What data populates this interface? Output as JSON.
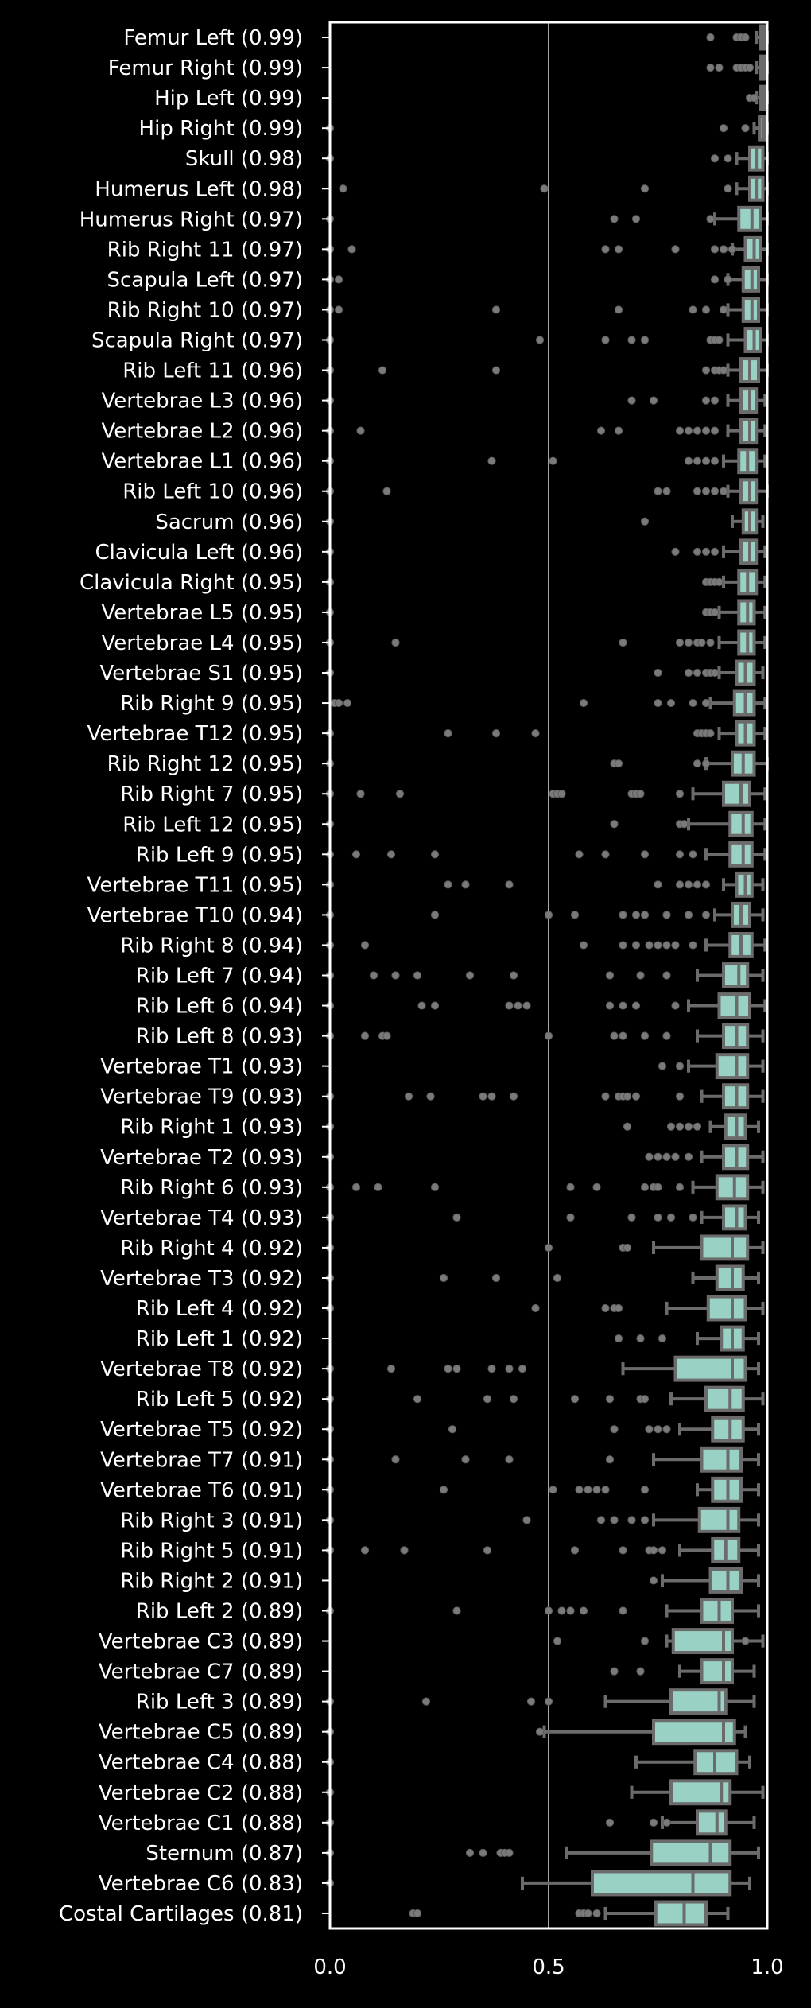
{
  "chart_data": {
    "type": "box",
    "orientation": "horizontal",
    "title": "",
    "xlabel": "",
    "ylabel": "",
    "xlim": [
      0.0,
      1.0
    ],
    "x_ticks": [
      "0.0",
      "0.5",
      "1.0"
    ],
    "grid": "vertical lines at ticks",
    "box_color": "#99d1c4",
    "edge_color": "#6b6b6b",
    "background": "#000000",
    "axes_color": "#ffffff",
    "categories": [
      {
        "label": "Femur Left (0.99)",
        "q1": 0.985,
        "median": 0.99,
        "q3": 0.995,
        "wlo": 0.975,
        "whi": 1.0,
        "outliers": [
          0.87,
          0.93,
          0.94,
          0.95
        ]
      },
      {
        "label": "Femur Right (0.99)",
        "q1": 0.985,
        "median": 0.99,
        "q3": 0.995,
        "wlo": 0.975,
        "whi": 1.0,
        "outliers": [
          0.87,
          0.89,
          0.93,
          0.94,
          0.95,
          0.96
        ]
      },
      {
        "label": "Hip Left (0.99)",
        "q1": 0.985,
        "median": 0.99,
        "q3": 0.995,
        "wlo": 0.975,
        "whi": 1.0,
        "outliers": [
          0.96,
          0.97
        ]
      },
      {
        "label": "Hip Right (0.99)",
        "q1": 0.982,
        "median": 0.99,
        "q3": 0.995,
        "wlo": 0.97,
        "whi": 1.0,
        "outliers": [
          0.0,
          0.9,
          0.95
        ]
      },
      {
        "label": "Skull (0.98)",
        "q1": 0.96,
        "median": 0.975,
        "q3": 0.99,
        "wlo": 0.93,
        "whi": 1.0,
        "outliers": [
          0.0,
          0.88,
          0.91
        ]
      },
      {
        "label": "Humerus Left (0.98)",
        "q1": 0.96,
        "median": 0.975,
        "q3": 0.99,
        "wlo": 0.93,
        "whi": 1.0,
        "outliers": [
          0.03,
          0.49,
          0.72,
          0.91
        ]
      },
      {
        "label": "Humerus Right (0.97)",
        "q1": 0.935,
        "median": 0.965,
        "q3": 0.985,
        "wlo": 0.88,
        "whi": 1.0,
        "outliers": [
          0.0,
          0.65,
          0.7,
          0.87
        ]
      },
      {
        "label": "Rib Right 11 (0.97)",
        "q1": 0.95,
        "median": 0.97,
        "q3": 0.985,
        "wlo": 0.92,
        "whi": 1.0,
        "outliers": [
          0.0,
          0.05,
          0.63,
          0.66,
          0.79,
          0.88,
          0.9,
          0.92
        ]
      },
      {
        "label": "Scapula Left (0.97)",
        "q1": 0.945,
        "median": 0.965,
        "q3": 0.98,
        "wlo": 0.91,
        "whi": 1.0,
        "outliers": [
          0.0,
          0.02,
          0.88,
          0.91
        ]
      },
      {
        "label": "Rib Right 10 (0.97)",
        "q1": 0.945,
        "median": 0.965,
        "q3": 0.98,
        "wlo": 0.91,
        "whi": 1.0,
        "outliers": [
          0.0,
          0.02,
          0.38,
          0.66,
          0.83,
          0.86,
          0.9
        ]
      },
      {
        "label": "Scapula Right (0.97)",
        "q1": 0.95,
        "median": 0.97,
        "q3": 0.985,
        "wlo": 0.91,
        "whi": 1.0,
        "outliers": [
          0.0,
          0.48,
          0.63,
          0.69,
          0.72,
          0.87,
          0.88,
          0.89
        ]
      },
      {
        "label": "Rib Left 11 (0.96)",
        "q1": 0.94,
        "median": 0.96,
        "q3": 0.98,
        "wlo": 0.91,
        "whi": 1.0,
        "outliers": [
          0.0,
          0.12,
          0.38,
          0.86,
          0.88,
          0.89,
          0.9
        ]
      },
      {
        "label": "Vertebrae L3 (0.96)",
        "q1": 0.94,
        "median": 0.96,
        "q3": 0.975,
        "wlo": 0.91,
        "whi": 0.995,
        "outliers": [
          0.0,
          0.69,
          0.74,
          0.86,
          0.88
        ]
      },
      {
        "label": "Vertebrae L2 (0.96)",
        "q1": 0.94,
        "median": 0.96,
        "q3": 0.975,
        "wlo": 0.91,
        "whi": 0.995,
        "outliers": [
          0.0,
          0.07,
          0.62,
          0.66,
          0.8,
          0.82,
          0.84,
          0.86,
          0.88
        ]
      },
      {
        "label": "Vertebrae L1 (0.96)",
        "q1": 0.935,
        "median": 0.955,
        "q3": 0.975,
        "wlo": 0.9,
        "whi": 0.995,
        "outliers": [
          0.0,
          0.37,
          0.51,
          0.82,
          0.84,
          0.86,
          0.88
        ]
      },
      {
        "label": "Rib Left 10 (0.96)",
        "q1": 0.94,
        "median": 0.96,
        "q3": 0.975,
        "wlo": 0.91,
        "whi": 1.0,
        "outliers": [
          0.0,
          0.13,
          0.75,
          0.77,
          0.84,
          0.86,
          0.88,
          0.9
        ]
      },
      {
        "label": "Sacrum (0.96)",
        "q1": 0.945,
        "median": 0.96,
        "q3": 0.975,
        "wlo": 0.92,
        "whi": 0.99,
        "outliers": [
          0.0,
          0.72
        ]
      },
      {
        "label": "Clavicula Left (0.96)",
        "q1": 0.94,
        "median": 0.96,
        "q3": 0.975,
        "wlo": 0.9,
        "whi": 0.995,
        "outliers": [
          0.0,
          0.79,
          0.84,
          0.86,
          0.88
        ]
      },
      {
        "label": "Clavicula Right (0.95)",
        "q1": 0.935,
        "median": 0.955,
        "q3": 0.975,
        "wlo": 0.9,
        "whi": 0.995,
        "outliers": [
          0.0,
          0.86,
          0.87,
          0.88,
          0.89
        ]
      },
      {
        "label": "Vertebrae L5 (0.95)",
        "q1": 0.935,
        "median": 0.955,
        "q3": 0.97,
        "wlo": 0.89,
        "whi": 0.995,
        "outliers": [
          0.0,
          0.86,
          0.87,
          0.88
        ]
      },
      {
        "label": "Vertebrae L4 (0.95)",
        "q1": 0.935,
        "median": 0.955,
        "q3": 0.97,
        "wlo": 0.89,
        "whi": 0.995,
        "outliers": [
          0.0,
          0.15,
          0.67,
          0.8,
          0.82,
          0.84,
          0.85,
          0.87
        ]
      },
      {
        "label": "Vertebrae S1 (0.95)",
        "q1": 0.93,
        "median": 0.95,
        "q3": 0.97,
        "wlo": 0.89,
        "whi": 0.99,
        "outliers": [
          0.0,
          0.75,
          0.82,
          0.84,
          0.86,
          0.87,
          0.88
        ]
      },
      {
        "label": "Rib Right 9 (0.95)",
        "q1": 0.925,
        "median": 0.95,
        "q3": 0.97,
        "wlo": 0.87,
        "whi": 0.995,
        "outliers": [
          0.01,
          0.02,
          0.04,
          0.58,
          0.75,
          0.78,
          0.83,
          0.86
        ]
      },
      {
        "label": "Vertebrae T12 (0.95)",
        "q1": 0.93,
        "median": 0.95,
        "q3": 0.97,
        "wlo": 0.89,
        "whi": 0.995,
        "outliers": [
          0.0,
          0.27,
          0.38,
          0.47,
          0.84,
          0.85,
          0.86,
          0.87
        ]
      },
      {
        "label": "Rib Right 12 (0.95)",
        "q1": 0.92,
        "median": 0.945,
        "q3": 0.97,
        "wlo": 0.86,
        "whi": 1.0,
        "outliers": [
          0.0,
          0.65,
          0.66,
          0.84,
          0.86
        ]
      },
      {
        "label": "Rib Right 7 (0.95)",
        "q1": 0.9,
        "median": 0.94,
        "q3": 0.96,
        "wlo": 0.83,
        "whi": 0.995,
        "outliers": [
          0.0,
          0.07,
          0.16,
          0.51,
          0.52,
          0.53,
          0.69,
          0.7,
          0.71,
          0.8
        ]
      },
      {
        "label": "Rib Left 12 (0.95)",
        "q1": 0.915,
        "median": 0.945,
        "q3": 0.965,
        "wlo": 0.82,
        "whi": 0.995,
        "outliers": [
          0.0,
          0.65,
          0.8,
          0.81
        ]
      },
      {
        "label": "Rib Left 9 (0.95)",
        "q1": 0.915,
        "median": 0.945,
        "q3": 0.965,
        "wlo": 0.86,
        "whi": 0.995,
        "outliers": [
          0.0,
          0.06,
          0.14,
          0.24,
          0.57,
          0.63,
          0.72,
          0.8,
          0.83
        ]
      },
      {
        "label": "Vertebrae T11 (0.95)",
        "q1": 0.93,
        "median": 0.95,
        "q3": 0.965,
        "wlo": 0.9,
        "whi": 0.99,
        "outliers": [
          0.0,
          0.27,
          0.31,
          0.41,
          0.75,
          0.8,
          0.82,
          0.84,
          0.86
        ]
      },
      {
        "label": "Vertebrae T10 (0.94)",
        "q1": 0.92,
        "median": 0.94,
        "q3": 0.96,
        "wlo": 0.88,
        "whi": 0.99,
        "outliers": [
          0.0,
          0.24,
          0.5,
          0.56,
          0.67,
          0.7,
          0.72,
          0.77,
          0.82,
          0.86
        ]
      },
      {
        "label": "Rib Right 8 (0.94)",
        "q1": 0.915,
        "median": 0.94,
        "q3": 0.965,
        "wlo": 0.86,
        "whi": 0.995,
        "outliers": [
          0.0,
          0.08,
          0.58,
          0.67,
          0.7,
          0.73,
          0.75,
          0.77,
          0.79,
          0.83
        ]
      },
      {
        "label": "Rib Left 7 (0.94)",
        "q1": 0.9,
        "median": 0.935,
        "q3": 0.955,
        "wlo": 0.84,
        "whi": 0.99,
        "outliers": [
          0.0,
          0.1,
          0.15,
          0.2,
          0.32,
          0.42,
          0.64,
          0.71,
          0.77
        ]
      },
      {
        "label": "Rib Left 6 (0.94)",
        "q1": 0.89,
        "median": 0.93,
        "q3": 0.96,
        "wlo": 0.82,
        "whi": 0.995,
        "outliers": [
          0.0,
          0.21,
          0.24,
          0.41,
          0.43,
          0.45,
          0.64,
          0.67,
          0.7,
          0.79
        ]
      },
      {
        "label": "Rib Left 8 (0.93)",
        "q1": 0.9,
        "median": 0.93,
        "q3": 0.955,
        "wlo": 0.84,
        "whi": 0.99,
        "outliers": [
          0.0,
          0.08,
          0.12,
          0.13,
          0.5,
          0.65,
          0.67,
          0.72,
          0.77
        ]
      },
      {
        "label": "Vertebrae T1 (0.93)",
        "q1": 0.885,
        "median": 0.93,
        "q3": 0.955,
        "wlo": 0.82,
        "whi": 0.99,
        "outliers": [
          0.76,
          0.8
        ]
      },
      {
        "label": "Vertebrae T9 (0.93)",
        "q1": 0.9,
        "median": 0.93,
        "q3": 0.955,
        "wlo": 0.85,
        "whi": 0.99,
        "outliers": [
          0.0,
          0.18,
          0.23,
          0.35,
          0.37,
          0.42,
          0.63,
          0.66,
          0.67,
          0.68,
          0.7,
          0.8
        ]
      },
      {
        "label": "Rib Right 1 (0.93)",
        "q1": 0.905,
        "median": 0.93,
        "q3": 0.95,
        "wlo": 0.87,
        "whi": 0.98,
        "outliers": [
          0.0,
          0.68,
          0.78,
          0.8,
          0.82,
          0.84
        ]
      },
      {
        "label": "Vertebrae T2 (0.93)",
        "q1": 0.9,
        "median": 0.93,
        "q3": 0.955,
        "wlo": 0.85,
        "whi": 0.99,
        "outliers": [
          0.0,
          0.73,
          0.75,
          0.77,
          0.79,
          0.82
        ]
      },
      {
        "label": "Rib Right 6 (0.93)",
        "q1": 0.885,
        "median": 0.925,
        "q3": 0.955,
        "wlo": 0.83,
        "whi": 0.99,
        "outliers": [
          0.0,
          0.06,
          0.11,
          0.24,
          0.55,
          0.61,
          0.72,
          0.74,
          0.75,
          0.8
        ]
      },
      {
        "label": "Vertebrae T4 (0.93)",
        "q1": 0.9,
        "median": 0.93,
        "q3": 0.95,
        "wlo": 0.85,
        "whi": 0.98,
        "outliers": [
          0.0,
          0.29,
          0.55,
          0.69,
          0.75,
          0.78,
          0.83
        ]
      },
      {
        "label": "Rib Right 4 (0.92)",
        "q1": 0.85,
        "median": 0.92,
        "q3": 0.955,
        "wlo": 0.74,
        "whi": 0.99,
        "outliers": [
          0.0,
          0.5,
          0.67,
          0.68
        ]
      },
      {
        "label": "Vertebrae T3 (0.92)",
        "q1": 0.885,
        "median": 0.92,
        "q3": 0.945,
        "wlo": 0.83,
        "whi": 0.98,
        "outliers": [
          0.0,
          0.26,
          0.38,
          0.52
        ]
      },
      {
        "label": "Rib Left 4 (0.92)",
        "q1": 0.865,
        "median": 0.92,
        "q3": 0.95,
        "wlo": 0.77,
        "whi": 0.99,
        "outliers": [
          0.0,
          0.47,
          0.63,
          0.65,
          0.66
        ]
      },
      {
        "label": "Rib Left 1 (0.92)",
        "q1": 0.895,
        "median": 0.92,
        "q3": 0.945,
        "wlo": 0.84,
        "whi": 0.98,
        "outliers": [
          0.66,
          0.71,
          0.76
        ]
      },
      {
        "label": "Vertebrae T8 (0.92)",
        "q1": 0.79,
        "median": 0.92,
        "q3": 0.95,
        "wlo": 0.67,
        "whi": 0.98,
        "outliers": [
          0.0,
          0.14,
          0.27,
          0.29,
          0.37,
          0.41,
          0.44
        ]
      },
      {
        "label": "Rib Left 5 (0.92)",
        "q1": 0.86,
        "median": 0.915,
        "q3": 0.945,
        "wlo": 0.78,
        "whi": 0.99,
        "outliers": [
          0.0,
          0.2,
          0.36,
          0.42,
          0.56,
          0.64,
          0.71,
          0.72
        ]
      },
      {
        "label": "Vertebrae T5 (0.92)",
        "q1": 0.875,
        "median": 0.915,
        "q3": 0.945,
        "wlo": 0.8,
        "whi": 0.98,
        "outliers": [
          0.0,
          0.28,
          0.65,
          0.73,
          0.75,
          0.77
        ]
      },
      {
        "label": "Vertebrae T7 (0.91)",
        "q1": 0.85,
        "median": 0.91,
        "q3": 0.94,
        "wlo": 0.74,
        "whi": 0.98,
        "outliers": [
          0.0,
          0.15,
          0.31,
          0.41,
          0.64
        ]
      },
      {
        "label": "Vertebrae T6 (0.91)",
        "q1": 0.875,
        "median": 0.91,
        "q3": 0.94,
        "wlo": 0.84,
        "whi": 0.98,
        "outliers": [
          0.0,
          0.26,
          0.51,
          0.57,
          0.59,
          0.61,
          0.63,
          0.72
        ]
      },
      {
        "label": "Rib Right 3 (0.91)",
        "q1": 0.845,
        "median": 0.91,
        "q3": 0.935,
        "wlo": 0.74,
        "whi": 0.98,
        "outliers": [
          0.0,
          0.45,
          0.62,
          0.65,
          0.69,
          0.72
        ]
      },
      {
        "label": "Rib Right 5 (0.91)",
        "q1": 0.875,
        "median": 0.905,
        "q3": 0.935,
        "wlo": 0.8,
        "whi": 0.98,
        "outliers": [
          0.0,
          0.08,
          0.17,
          0.36,
          0.56,
          0.67,
          0.73,
          0.74,
          0.76
        ]
      },
      {
        "label": "Rib Right 2 (0.91)",
        "q1": 0.87,
        "median": 0.91,
        "q3": 0.94,
        "wlo": 0.76,
        "whi": 0.98,
        "outliers": [
          0.74
        ]
      },
      {
        "label": "Rib Left 2 (0.89)",
        "q1": 0.85,
        "median": 0.89,
        "q3": 0.92,
        "wlo": 0.77,
        "whi": 0.98,
        "outliers": [
          0.0,
          0.29,
          0.5,
          0.53,
          0.55,
          0.58,
          0.67
        ]
      },
      {
        "label": "Vertebrae C3 (0.89)",
        "q1": 0.785,
        "median": 0.9,
        "q3": 0.92,
        "wlo": 0.77,
        "whi": 0.99,
        "outliers": [
          0.52,
          0.72,
          0.95
        ]
      },
      {
        "label": "Vertebrae C7 (0.89)",
        "q1": 0.85,
        "median": 0.9,
        "q3": 0.92,
        "wlo": 0.8,
        "whi": 0.97,
        "outliers": [
          0.65,
          0.71
        ]
      },
      {
        "label": "Rib Left 3 (0.89)",
        "q1": 0.78,
        "median": 0.89,
        "q3": 0.905,
        "wlo": 0.63,
        "whi": 0.97,
        "outliers": [
          0.0,
          0.22,
          0.46,
          0.5
        ]
      },
      {
        "label": "Vertebrae C5 (0.89)",
        "q1": 0.74,
        "median": 0.9,
        "q3": 0.925,
        "wlo": 0.49,
        "whi": 0.95,
        "outliers": [
          0.0,
          0.48
        ]
      },
      {
        "label": "Vertebrae C4 (0.88)",
        "q1": 0.835,
        "median": 0.88,
        "q3": 0.93,
        "wlo": 0.7,
        "whi": 0.96,
        "outliers": [
          0.0
        ]
      },
      {
        "label": "Vertebrae C2 (0.88)",
        "q1": 0.78,
        "median": 0.895,
        "q3": 0.915,
        "wlo": 0.69,
        "whi": 0.99,
        "outliers": [
          0.0
        ]
      },
      {
        "label": "Vertebrae C1 (0.88)",
        "q1": 0.84,
        "median": 0.885,
        "q3": 0.905,
        "wlo": 0.76,
        "whi": 0.97,
        "outliers": [
          0.0,
          0.64,
          0.74,
          0.77
        ]
      },
      {
        "label": "Sternum (0.87)",
        "q1": 0.735,
        "median": 0.87,
        "q3": 0.915,
        "wlo": 0.54,
        "whi": 0.98,
        "outliers": [
          0.0,
          0.32,
          0.35,
          0.39,
          0.4,
          0.41
        ]
      },
      {
        "label": "Vertebrae C6 (0.83)",
        "q1": 0.6,
        "median": 0.83,
        "q3": 0.915,
        "wlo": 0.44,
        "whi": 0.96,
        "outliers": [
          0.0
        ]
      },
      {
        "label": "Costal Cartilages (0.81)",
        "q1": 0.745,
        "median": 0.81,
        "q3": 0.86,
        "wlo": 0.63,
        "whi": 0.91,
        "outliers": [
          0.19,
          0.2,
          0.57,
          0.58,
          0.59,
          0.61
        ]
      }
    ]
  }
}
